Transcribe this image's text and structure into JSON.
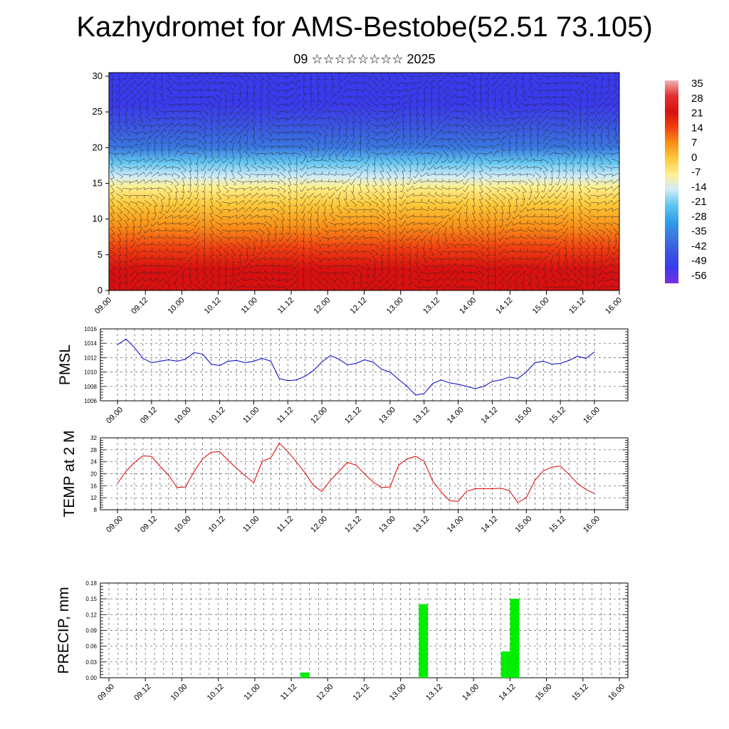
{
  "page": {
    "title": "Kazhydromet for AMS-Bestobe(52.51 73.105)",
    "subtitle": "09 ☆☆☆☆☆☆☆☆ 2025"
  },
  "chart_data": [
    {
      "type": "heatmap",
      "title": "",
      "x_tick_labels": [
        "09.00",
        "09.12",
        "10.00",
        "10.12",
        "11.00",
        "11.12",
        "12.00",
        "12.12",
        "13.00",
        "13.12",
        "14.00",
        "14.12",
        "15.00",
        "15.12",
        "16.00"
      ],
      "y_ticks": [
        0,
        5,
        10,
        15,
        20,
        25,
        30
      ],
      "ylim": [
        0,
        30.5
      ],
      "colorbar_labels": [
        "35",
        "28",
        "21",
        "14",
        "7",
        "0",
        "-7",
        "-14",
        "-21",
        "-28",
        "-35",
        "-42",
        "-49",
        "-56"
      ],
      "colorbar_stops": [
        {
          "value": 35,
          "color": "#f0b0b0"
        },
        {
          "value": 28,
          "color": "#e03030"
        },
        {
          "value": 21,
          "color": "#d81010"
        },
        {
          "value": 14,
          "color": "#f04010"
        },
        {
          "value": 7,
          "color": "#f89018"
        },
        {
          "value": 0,
          "color": "#fcc838"
        },
        {
          "value": -7,
          "color": "#fff090"
        },
        {
          "value": -14,
          "color": "#d0ecf8"
        },
        {
          "value": -21,
          "color": "#60c4f0"
        },
        {
          "value": -28,
          "color": "#30a0e8"
        },
        {
          "value": -35,
          "color": "#3a78e0"
        },
        {
          "value": -42,
          "color": "#3a55e0"
        },
        {
          "value": -49,
          "color": "#3a3aec"
        },
        {
          "value": -56,
          "color": "#7a30e0"
        }
      ],
      "temperature_profile": [
        {
          "height": 0,
          "value": 24
        },
        {
          "height": 3,
          "value": 18
        },
        {
          "height": 6,
          "value": 12
        },
        {
          "height": 9,
          "value": 6
        },
        {
          "height": 12,
          "value": 0
        },
        {
          "height": 14.5,
          "value": -6
        },
        {
          "height": 16,
          "value": -12
        },
        {
          "height": 18,
          "value": -24
        },
        {
          "height": 20,
          "value": -32
        },
        {
          "height": 23,
          "value": -40
        },
        {
          "height": 26,
          "value": -46
        },
        {
          "height": 30.5,
          "value": -52
        }
      ],
      "overlay": "wind barbs"
    },
    {
      "type": "line",
      "ylabel": "PMSL",
      "ylim": [
        1006,
        1016
      ],
      "y_ticks": [
        1006,
        1008,
        1010,
        1012,
        1014,
        1016
      ],
      "x_tick_labels": [
        "09.00",
        "09.12",
        "10.00",
        "10.12",
        "11.00",
        "11.12",
        "12.00",
        "12.12",
        "13.00",
        "13.12",
        "14.00",
        "14.12",
        "15.00",
        "15.12",
        "16.00"
      ],
      "series_color": "#0000cc",
      "values": [
        1013.8,
        1014.6,
        1013.4,
        1011.9,
        1011.3,
        1011.5,
        1011.7,
        1011.5,
        1011.8,
        1012.7,
        1012.5,
        1011.1,
        1010.9,
        1011.5,
        1011.6,
        1011.3,
        1011.5,
        1011.9,
        1011.5,
        1009.1,
        1008.8,
        1008.9,
        1009.4,
        1010.2,
        1011.4,
        1012.3,
        1011.8,
        1011.0,
        1011.2,
        1011.7,
        1011.4,
        1010.4,
        1010.0,
        1009.0,
        1008.0,
        1006.8,
        1007.0,
        1008.4,
        1008.9,
        1008.5,
        1008.3,
        1008.0,
        1007.7,
        1008.0,
        1008.7,
        1008.9,
        1009.3,
        1009.1,
        1010.0,
        1011.3,
        1011.5,
        1011.1,
        1011.2,
        1011.6,
        1012.2,
        1011.9,
        1012.8
      ]
    },
    {
      "type": "line",
      "ylabel": "TEMP at 2 M",
      "ylim": [
        8,
        32
      ],
      "y_ticks": [
        8,
        12,
        16,
        20,
        24,
        28,
        32
      ],
      "x_tick_labels": [
        "09.00",
        "09.12",
        "10.00",
        "10.12",
        "11.00",
        "11.12",
        "12.00",
        "12.12",
        "13.00",
        "13.12",
        "14.00",
        "14.12",
        "15.00",
        "15.12",
        "16.00"
      ],
      "series_color": "#dd0000",
      "values": [
        16.8,
        20.8,
        23.8,
        26.0,
        25.8,
        22.5,
        19.5,
        15.4,
        15.6,
        20.8,
        25.0,
        27.2,
        27.4,
        24.4,
        21.8,
        19.3,
        17.0,
        24.2,
        25.3,
        30.3,
        27.4,
        24.0,
        20.4,
        16.1,
        14.1,
        17.8,
        20.8,
        23.8,
        22.9,
        20.0,
        17.3,
        15.4,
        15.6,
        22.8,
        25.0,
        25.8,
        24.2,
        17.6,
        14.0,
        11.0,
        10.8,
        14.2,
        15.0,
        15.0,
        15.0,
        15.2,
        14.4,
        10.4,
        12.0,
        17.8,
        21.0,
        22.2,
        22.6,
        19.8,
        16.8,
        14.8,
        13.4
      ]
    },
    {
      "type": "bar",
      "ylabel": "PRECIP, mm",
      "ylim": [
        0,
        0.18
      ],
      "y_tick_labels": [
        "0.00",
        "0.03",
        "0.06",
        "0.09",
        "0.12",
        "0.15",
        "0.18"
      ],
      "x_tick_labels": [
        "09.00",
        "09.12",
        "10.00",
        "10.12",
        "11.00",
        "11.12",
        "12.00",
        "12.12",
        "13.00",
        "13.12",
        "14.00",
        "14.12",
        "15.00",
        "15.12",
        "16.00"
      ],
      "bar_color": "#00ee00",
      "bars": [
        {
          "step": 21,
          "value": 0.01
        },
        {
          "step": 34,
          "value": 0.14
        },
        {
          "step": 43,
          "value": 0.05
        },
        {
          "step": 44,
          "value": 0.15
        }
      ]
    }
  ]
}
